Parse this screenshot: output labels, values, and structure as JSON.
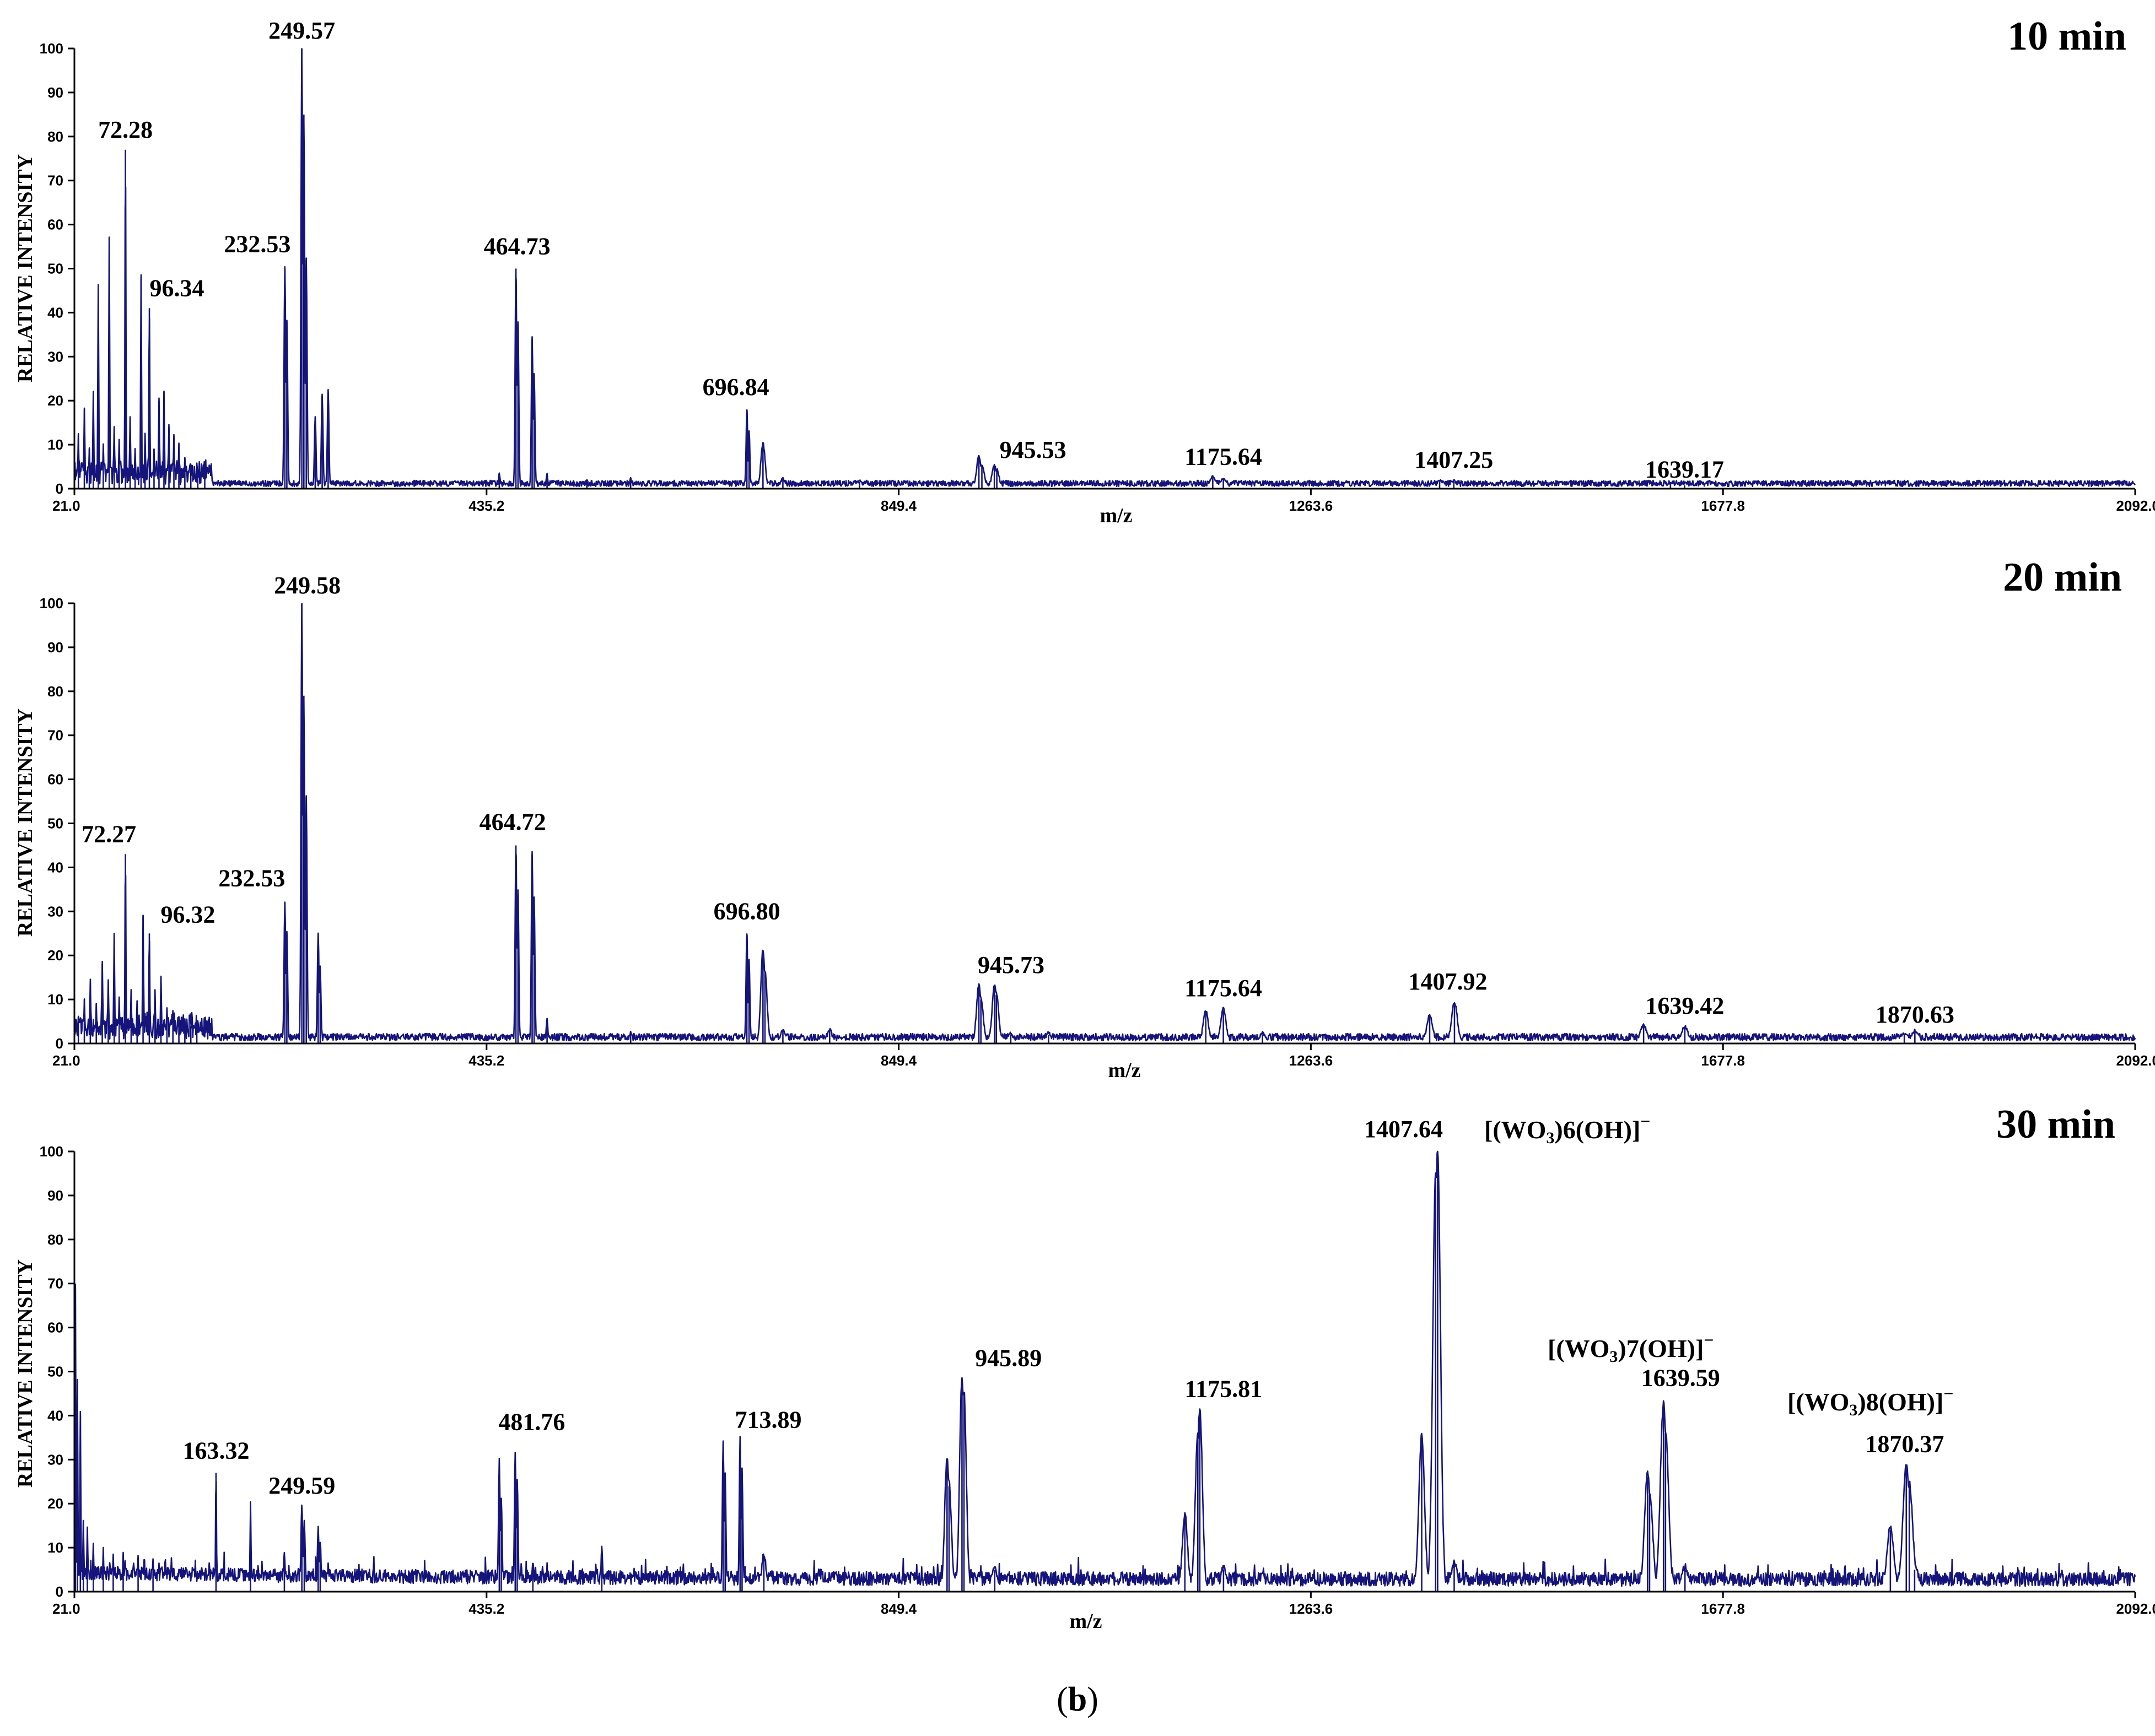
{
  "caption": {
    "open": "(",
    "letter": "b",
    "close": ")"
  },
  "chart_data": [
    {
      "type": "line",
      "title": "10 min",
      "xlabel": "m/z",
      "ylabel": "RELATIVE INTENSITY",
      "xlim": [
        21.0,
        2092.0
      ],
      "ylim": [
        0,
        100
      ],
      "xticks": [
        "21.0",
        "435.2",
        "849.4",
        "1263.6",
        "1677.8",
        "2092.0"
      ],
      "yticks": [
        "0",
        "10",
        "20",
        "30",
        "40",
        "50",
        "60",
        "70",
        "80",
        "90",
        "100"
      ],
      "noise": 1.5,
      "peaks": [
        [
          25,
          12
        ],
        [
          31,
          18
        ],
        [
          36,
          9
        ],
        [
          40,
          22
        ],
        [
          45,
          46
        ],
        [
          50,
          10
        ],
        [
          56,
          57
        ],
        [
          61,
          14
        ],
        [
          66,
          11
        ],
        [
          72.28,
          77
        ],
        [
          77,
          16
        ],
        [
          82,
          9
        ],
        [
          88,
          48
        ],
        [
          92,
          12
        ],
        [
          96.34,
          41
        ],
        [
          101,
          9
        ],
        [
          106,
          20
        ],
        [
          111,
          22
        ],
        [
          116,
          14
        ],
        [
          121,
          12
        ],
        [
          126,
          10
        ],
        [
          132,
          7
        ],
        [
          138,
          5
        ],
        [
          145,
          4
        ],
        [
          152,
          3
        ],
        [
          232.53,
          50
        ],
        [
          234.5,
          38
        ],
        [
          249.57,
          100
        ],
        [
          251.6,
          85
        ],
        [
          254,
          52
        ],
        [
          263,
          16
        ],
        [
          270,
          21
        ],
        [
          276,
          22
        ],
        [
          448,
          3
        ],
        [
          464.73,
          50
        ],
        [
          466.8,
          38
        ],
        [
          481,
          34
        ],
        [
          483,
          26
        ],
        [
          496,
          3
        ],
        [
          536,
          1.5
        ],
        [
          580,
          2.5
        ],
        [
          696.84,
          18
        ],
        [
          699,
          13
        ],
        [
          713,
          10
        ],
        [
          733,
          2
        ],
        [
          810,
          1.5
        ],
        [
          930,
          7
        ],
        [
          933,
          5
        ],
        [
          945.53,
          5
        ],
        [
          948,
          4
        ],
        [
          1165,
          2.5
        ],
        [
          1175.64,
          2.2
        ],
        [
          1393,
          1.5
        ],
        [
          1407.25,
          1.5
        ],
        [
          1625,
          1
        ],
        [
          1639.17,
          0.8
        ]
      ],
      "annotations": [
        {
          "text": "249.57",
          "x": 249.57,
          "y": 100
        },
        {
          "text": "72.28",
          "x": 72.28,
          "y": 77
        },
        {
          "text": "232.53",
          "x": 232.53,
          "y": 50
        },
        {
          "text": "96.34",
          "x": 96.34,
          "y": 41
        },
        {
          "text": "464.73",
          "x": 464.73,
          "y": 50
        },
        {
          "text": "696.84",
          "x": 696.84,
          "y": 18
        },
        {
          "text": "945.53",
          "x": 945.53,
          "y": 5
        },
        {
          "text": "1175.64",
          "x": 1175.64,
          "y": 2.2
        },
        {
          "text": "1407.25",
          "x": 1407.25,
          "y": 1.5
        },
        {
          "text": "1639.17",
          "x": 1639.17,
          "y": 0.8
        }
      ]
    },
    {
      "type": "line",
      "title": "20 min",
      "xlabel": "m/z",
      "ylabel": "RELATIVE INTENSITY",
      "xlim": [
        21.0,
        2092.0
      ],
      "ylim": [
        0,
        100
      ],
      "xticks": [
        "21.0",
        "435.2",
        "849.4",
        "1263.6",
        "1677.8",
        "2092.0"
      ],
      "yticks": [
        "0",
        "10",
        "20",
        "30",
        "40",
        "50",
        "60",
        "70",
        "80",
        "90",
        "100"
      ],
      "noise": 1.8,
      "peaks": [
        [
          25,
          6
        ],
        [
          31,
          10
        ],
        [
          37,
          14
        ],
        [
          43,
          9
        ],
        [
          49,
          18
        ],
        [
          55,
          14
        ],
        [
          61,
          25
        ],
        [
          66,
          10
        ],
        [
          72.27,
          43
        ],
        [
          78,
          12
        ],
        [
          84,
          9
        ],
        [
          90,
          29
        ],
        [
          96.32,
          25
        ],
        [
          102,
          12
        ],
        [
          108,
          15
        ],
        [
          114,
          8
        ],
        [
          120,
          7
        ],
        [
          126,
          6
        ],
        [
          132,
          5
        ],
        [
          138,
          4
        ],
        [
          144,
          3
        ],
        [
          232.53,
          32
        ],
        [
          234.5,
          25
        ],
        [
          249.58,
          100
        ],
        [
          251.6,
          79
        ],
        [
          254,
          56
        ],
        [
          266,
          25
        ],
        [
          268,
          17
        ],
        [
          464.72,
          45
        ],
        [
          466.8,
          35
        ],
        [
          481,
          43
        ],
        [
          483,
          33
        ],
        [
          496,
          5
        ],
        [
          580,
          2.5
        ],
        [
          696.8,
          25
        ],
        [
          699,
          19
        ],
        [
          713,
          21
        ],
        [
          715,
          16
        ],
        [
          733,
          3
        ],
        [
          780,
          3
        ],
        [
          930,
          13
        ],
        [
          932,
          10
        ],
        [
          945.73,
          13
        ],
        [
          947.5,
          11
        ],
        [
          962,
          2
        ],
        [
          1000,
          2
        ],
        [
          1158,
          7
        ],
        [
          1175.64,
          7.5
        ],
        [
          1215,
          2
        ],
        [
          1383,
          6
        ],
        [
          1407.92,
          9
        ],
        [
          1598,
          4
        ],
        [
          1639.42,
          3.5
        ],
        [
          1860,
          2
        ],
        [
          1870.63,
          2.5
        ]
      ],
      "annotations": [
        {
          "text": "249.58",
          "x": 249.58,
          "y": 100
        },
        {
          "text": "72.27",
          "x": 72.27,
          "y": 43
        },
        {
          "text": "232.53",
          "x": 232.53,
          "y": 32
        },
        {
          "text": "96.32",
          "x": 96.32,
          "y": 25
        },
        {
          "text": "464.72",
          "x": 464.72,
          "y": 45
        },
        {
          "text": "696.80",
          "x": 696.8,
          "y": 25
        },
        {
          "text": "945.73",
          "x": 945.73,
          "y": 13
        },
        {
          "text": "1175.64",
          "x": 1175.64,
          "y": 7.5
        },
        {
          "text": "1407.92",
          "x": 1407.92,
          "y": 9
        },
        {
          "text": "1639.42",
          "x": 1639.42,
          "y": 3.5
        },
        {
          "text": "1870.63",
          "x": 1870.63,
          "y": 2.5
        }
      ]
    },
    {
      "type": "line",
      "title": "30 min",
      "xlabel": "m/z",
      "ylabel": "RELATIVE INTENSITY",
      "xlim": [
        21.0,
        2092.0
      ],
      "ylim": [
        0,
        100
      ],
      "xticks": [
        "21.0",
        "435.2",
        "849.4",
        "1263.6",
        "1677.8",
        "2092.0"
      ],
      "yticks": [
        "0",
        "10",
        "20",
        "30",
        "40",
        "50",
        "60",
        "70",
        "80",
        "90",
        "100"
      ],
      "noise": 3.5,
      "peaks": [
        [
          22,
          69
        ],
        [
          24,
          47
        ],
        [
          27,
          40
        ],
        [
          30,
          16
        ],
        [
          34,
          14
        ],
        [
          40,
          10
        ],
        [
          50,
          9
        ],
        [
          60,
          8
        ],
        [
          70,
          8
        ],
        [
          85,
          7
        ],
        [
          100,
          7
        ],
        [
          163.32,
          27
        ],
        [
          198,
          19
        ],
        [
          232,
          8
        ],
        [
          249.59,
          19
        ],
        [
          252,
          15
        ],
        [
          266,
          14
        ],
        [
          268,
          11
        ],
        [
          448,
          29
        ],
        [
          450,
          21
        ],
        [
          464,
          31
        ],
        [
          466,
          25
        ],
        [
          481.76,
          6
        ],
        [
          551,
          9
        ],
        [
          673,
          34
        ],
        [
          675,
          26
        ],
        [
          690,
          34
        ],
        [
          692,
          27
        ],
        [
          713.89,
          8
        ],
        [
          898,
          30
        ],
        [
          900,
          24
        ],
        [
          913,
          48
        ],
        [
          915,
          45
        ],
        [
          945.89,
          5
        ],
        [
          1137,
          17
        ],
        [
          1150,
          35
        ],
        [
          1152,
          41
        ],
        [
          1175.81,
          5
        ],
        [
          1375,
          35
        ],
        [
          1389,
          95
        ],
        [
          1391,
          100
        ],
        [
          1407.64,
          6
        ],
        [
          1602,
          26
        ],
        [
          1604,
          22
        ],
        [
          1618,
          42
        ],
        [
          1620,
          36
        ],
        [
          1639.59,
          5
        ],
        [
          1846,
          14
        ],
        [
          1862,
          28
        ],
        [
          1865,
          24
        ],
        [
          1870.37,
          5
        ]
      ],
      "annotations": [
        {
          "text": "163.32",
          "x": 163.32,
          "y": 27
        },
        {
          "text": "249.59",
          "x": 249.59,
          "y": 19
        },
        {
          "text": "481.76",
          "x": 481.76,
          "y": 31
        },
        {
          "text": "713.89",
          "x": 713.89,
          "y": 34
        },
        {
          "text": "945.89",
          "x": 945.89,
          "y": 48
        },
        {
          "text": "1175.81",
          "x": 1175.81,
          "y": 41
        },
        {
          "text": "1407.64",
          "x": 1407.64,
          "y": 100
        },
        {
          "text": "1639.59",
          "x": 1639.59,
          "y": 42
        },
        {
          "text": "1870.37",
          "x": 1870.37,
          "y": 28
        }
      ],
      "ion_labels": [
        {
          "species": "[(WO",
          "sub": "3",
          "n": ")6",
          "tail": "(OH)]",
          "charge": "−",
          "at": "1407.64"
        },
        {
          "species": "[(WO",
          "sub": "3",
          "n": ")7",
          "tail": "(OH)]",
          "charge": "−",
          "at": "1639.59"
        },
        {
          "species": "[(WO",
          "sub": "3",
          "n": ")8",
          "tail": "(OH)]",
          "charge": "−",
          "at": "1870.37"
        }
      ]
    }
  ]
}
